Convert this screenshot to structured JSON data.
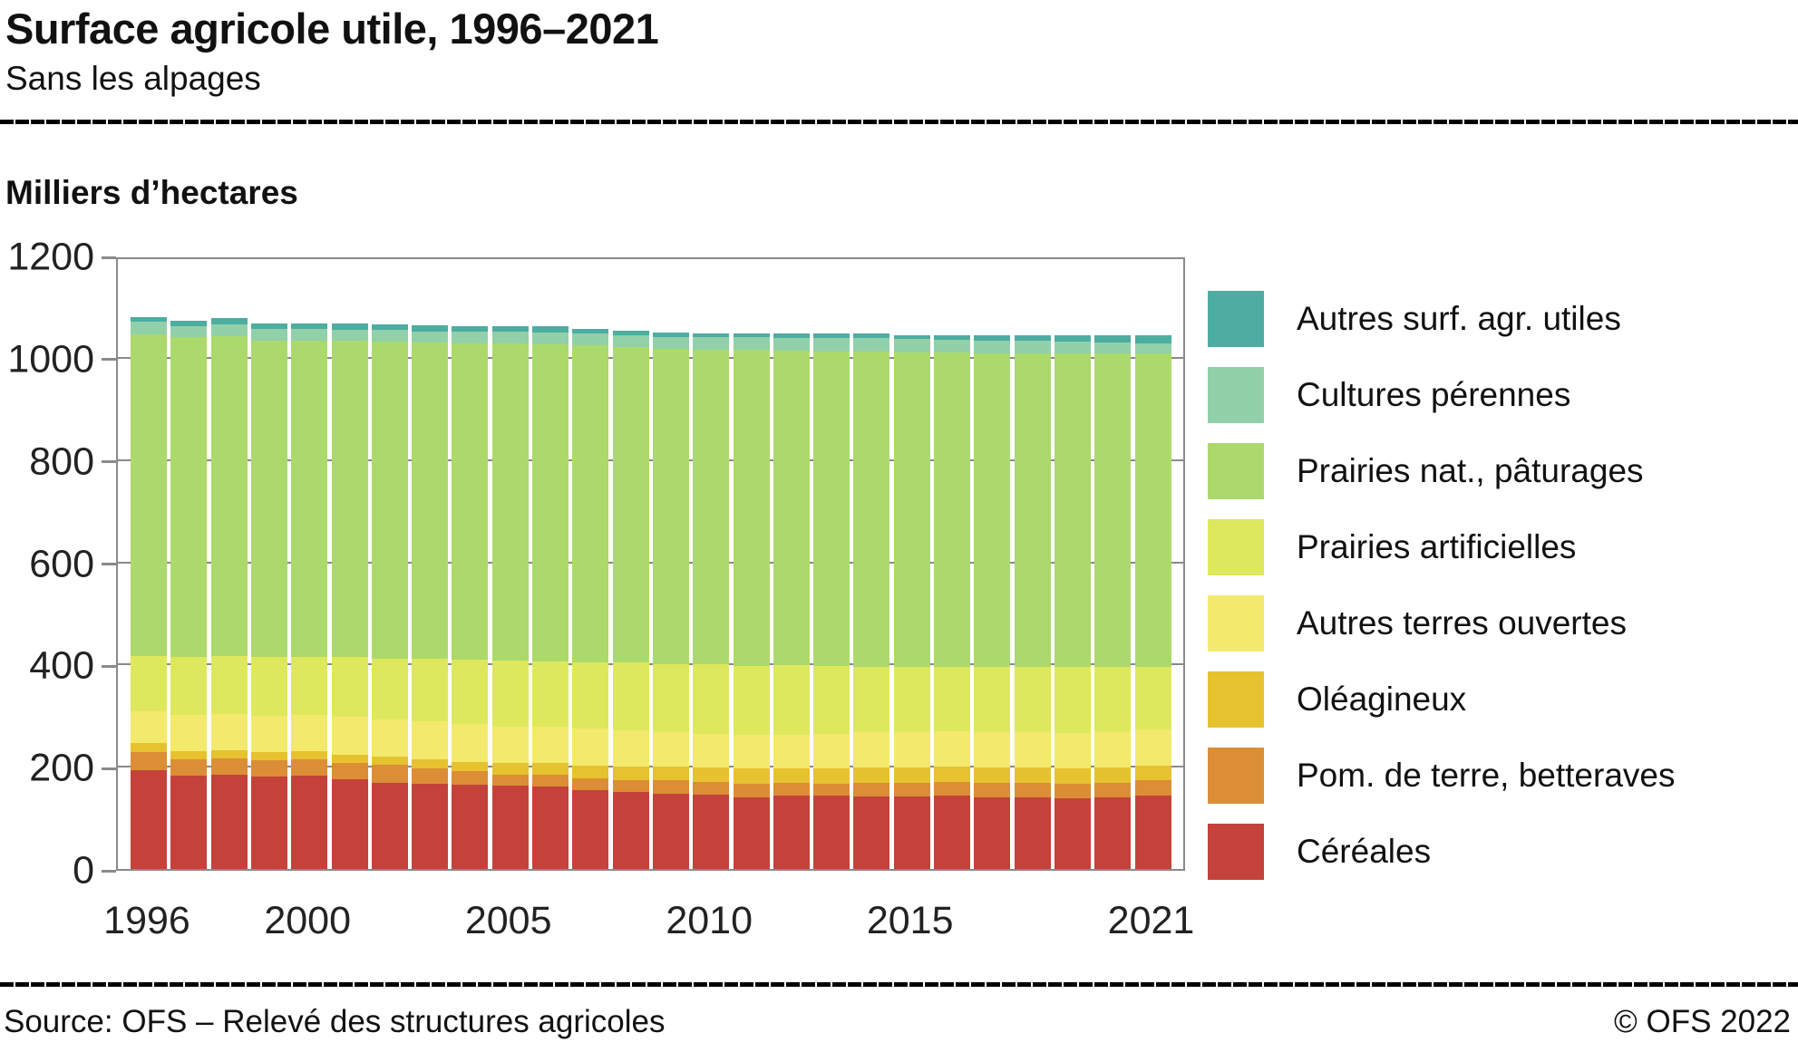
{
  "header": {
    "title": "Surface agricole utile, 1996–2021",
    "subtitle": "Sans les alpages"
  },
  "unit_label": "Milliers d’hectares",
  "footer": {
    "source": "Source: OFS – Relevé des structures agricoles",
    "copyright": "© OFS 2022"
  },
  "colors": {
    "grid": "#8a8a8a",
    "axis_text": "#222222"
  },
  "chart_data": {
    "type": "bar",
    "stacked": true,
    "title": "Surface agricole utile, 1996–2021",
    "subtitle": "Sans les alpages",
    "ylabel": "Milliers d’hectares",
    "xlabel": "",
    "ylim": [
      0,
      1200
    ],
    "y_ticks": [
      0,
      200,
      400,
      600,
      800,
      1000,
      1200
    ],
    "grid": true,
    "legend_position": "right",
    "categories": [
      1996,
      1997,
      1998,
      1999,
      2000,
      2001,
      2002,
      2003,
      2004,
      2005,
      2006,
      2007,
      2008,
      2009,
      2010,
      2011,
      2012,
      2013,
      2014,
      2015,
      2016,
      2017,
      2018,
      2019,
      2020,
      2021
    ],
    "x_tick_labels": [
      {
        "index": 0,
        "label": "1996"
      },
      {
        "index": 4,
        "label": "2000"
      },
      {
        "index": 9,
        "label": "2005"
      },
      {
        "index": 14,
        "label": "2010"
      },
      {
        "index": 19,
        "label": "2015"
      },
      {
        "index": 25,
        "label": "2021"
      }
    ],
    "series": [
      {
        "name": "Céréales",
        "color": "#C4423A",
        "values": [
          194,
          182,
          185,
          181,
          182,
          175,
          169,
          167,
          165,
          163,
          162,
          154,
          151,
          148,
          146,
          140,
          144,
          143,
          142,
          142,
          143,
          140,
          140,
          138,
          140,
          143
        ]
      },
      {
        "name": "Pom. de terre, betteraves",
        "color": "#DB8E35",
        "values": [
          34,
          33,
          32,
          32,
          33,
          33,
          34,
          30,
          26,
          22,
          22,
          23,
          23,
          25,
          24,
          26,
          24,
          24,
          27,
          27,
          28,
          29,
          28,
          28,
          29,
          31
        ]
      },
      {
        "name": "Oléagineux",
        "color": "#E6C22F",
        "values": [
          19,
          16,
          16,
          15,
          15,
          16,
          16,
          17,
          19,
          22,
          24,
          26,
          27,
          28,
          29,
          30,
          29,
          29,
          30,
          30,
          29,
          30,
          30,
          31,
          30,
          28
        ]
      },
      {
        "name": "Autres terres ouvertes",
        "color": "#F3E96D",
        "values": [
          62,
          70,
          71,
          71,
          71,
          73,
          74,
          75,
          74,
          72,
          70,
          71,
          71,
          66,
          65,
          66,
          66,
          69,
          69,
          69,
          70,
          69,
          69,
          69,
          69,
          71
        ]
      },
      {
        "name": "Prairies artificielles",
        "color": "#DEE85C",
        "values": [
          107,
          114,
          113,
          116,
          113,
          117,
          119,
          122,
          125,
          128,
          128,
          131,
          132,
          134,
          136,
          136,
          135,
          132,
          128,
          128,
          125,
          127,
          128,
          129,
          127,
          122
        ]
      },
      {
        "name": "Prairies nat., pâturages",
        "color": "#ACD96C",
        "values": [
          630,
          625,
          626,
          619,
          620,
          620,
          620,
          619,
          620,
          621,
          621,
          619,
          617,
          616,
          616,
          617,
          616,
          616,
          616,
          615,
          615,
          614,
          614,
          613,
          613,
          613
        ]
      },
      {
        "name": "Cultures pérennes",
        "color": "#92D0A9",
        "values": [
          24,
          22,
          22,
          22,
          22,
          21,
          22,
          22,
          23,
          24,
          23,
          23,
          23,
          23,
          24,
          25,
          25,
          26,
          27,
          26,
          26,
          25,
          24,
          23,
          22,
          20
        ]
      },
      {
        "name": "Autres surf. agr. utiles",
        "color": "#4CADA0",
        "values": [
          10,
          10,
          13,
          11,
          11,
          12,
          11,
          11,
          10,
          10,
          12,
          10,
          9,
          10,
          8,
          8,
          8,
          9,
          9,
          8,
          8,
          10,
          11,
          13,
          14,
          17
        ]
      }
    ]
  }
}
